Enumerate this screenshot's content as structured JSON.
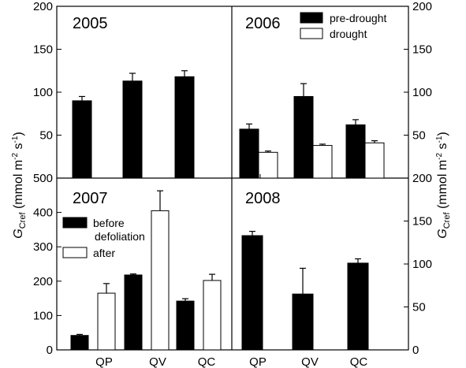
{
  "chart_data": [
    {
      "panel": "2005",
      "type": "bar",
      "title": "2005",
      "categories": [
        "QP",
        "QV",
        "QC"
      ],
      "series": [
        {
          "values": [
            90,
            113,
            118
          ],
          "errors": [
            5,
            9,
            7
          ],
          "fill": "#000000"
        }
      ],
      "ylim": [
        0,
        200
      ],
      "yticks": [
        "50",
        "100",
        "150",
        "200"
      ]
    },
    {
      "panel": "2006",
      "type": "bar",
      "title": "2006",
      "categories": [
        "QP",
        "QV",
        "QC"
      ],
      "series": [
        {
          "name": "pre-drought",
          "values": [
            57,
            95,
            62
          ],
          "errors": [
            6,
            15,
            6
          ],
          "fill": "#000000"
        },
        {
          "name": "drought",
          "values": [
            30,
            38,
            41
          ],
          "errors": [
            1.5,
            1.5,
            2.5
          ],
          "fill": "#ffffff"
        }
      ],
      "ylim": [
        0,
        200
      ],
      "yticks": [
        "50",
        "100",
        "150",
        "200"
      ]
    },
    {
      "panel": "2007",
      "type": "bar",
      "title": "2007",
      "categories": [
        "QP",
        "QV",
        "QC"
      ],
      "series": [
        {
          "name": "before defoliation",
          "values": [
            42,
            218,
            142
          ],
          "errors": [
            3,
            3,
            7
          ],
          "fill": "#000000"
        },
        {
          "name": "after",
          "values": [
            165,
            405,
            202
          ],
          "errors": [
            28,
            58,
            18
          ],
          "fill": "#ffffff"
        }
      ],
      "ylim": [
        0,
        500
      ],
      "yticks": [
        "0",
        "100",
        "200",
        "300",
        "400",
        "500"
      ]
    },
    {
      "panel": "2008",
      "type": "bar",
      "title": "2008",
      "categories": [
        "QP",
        "QV",
        "QC"
      ],
      "series": [
        {
          "values": [
            133,
            65,
            101
          ],
          "errors": [
            5,
            30,
            5
          ],
          "fill": "#000000"
        }
      ],
      "ylim": [
        0,
        200
      ],
      "yticks": [
        "0",
        "50",
        "100",
        "150",
        "200"
      ]
    }
  ],
  "legend_2006": [
    {
      "label": "pre-drought",
      "fill": "#000000"
    },
    {
      "label": "drought",
      "fill": "#ffffff"
    }
  ],
  "legend_2007": [
    {
      "lines": [
        "before",
        "defoliation"
      ],
      "fill": "#000000"
    },
    {
      "lines": [
        "after"
      ],
      "fill": "#ffffff"
    }
  ],
  "axes": {
    "ylabel_left": {
      "main": "G",
      "sub": "Cref",
      "units": "(mmol m",
      "exp1": "-2",
      "mid": " s",
      "exp2": "-1",
      "close": ")"
    },
    "ylabel_right": {
      "main": "G",
      "sub": "Cref",
      "units": "(mmol m",
      "exp1": "-2",
      "mid": " s",
      "exp2": "-1",
      "close": ")"
    },
    "xticks": [
      "QP",
      "QV",
      "QC"
    ]
  },
  "colors": {
    "bar_dark": "#000000",
    "bar_light": "#ffffff",
    "axis": "#000000"
  }
}
